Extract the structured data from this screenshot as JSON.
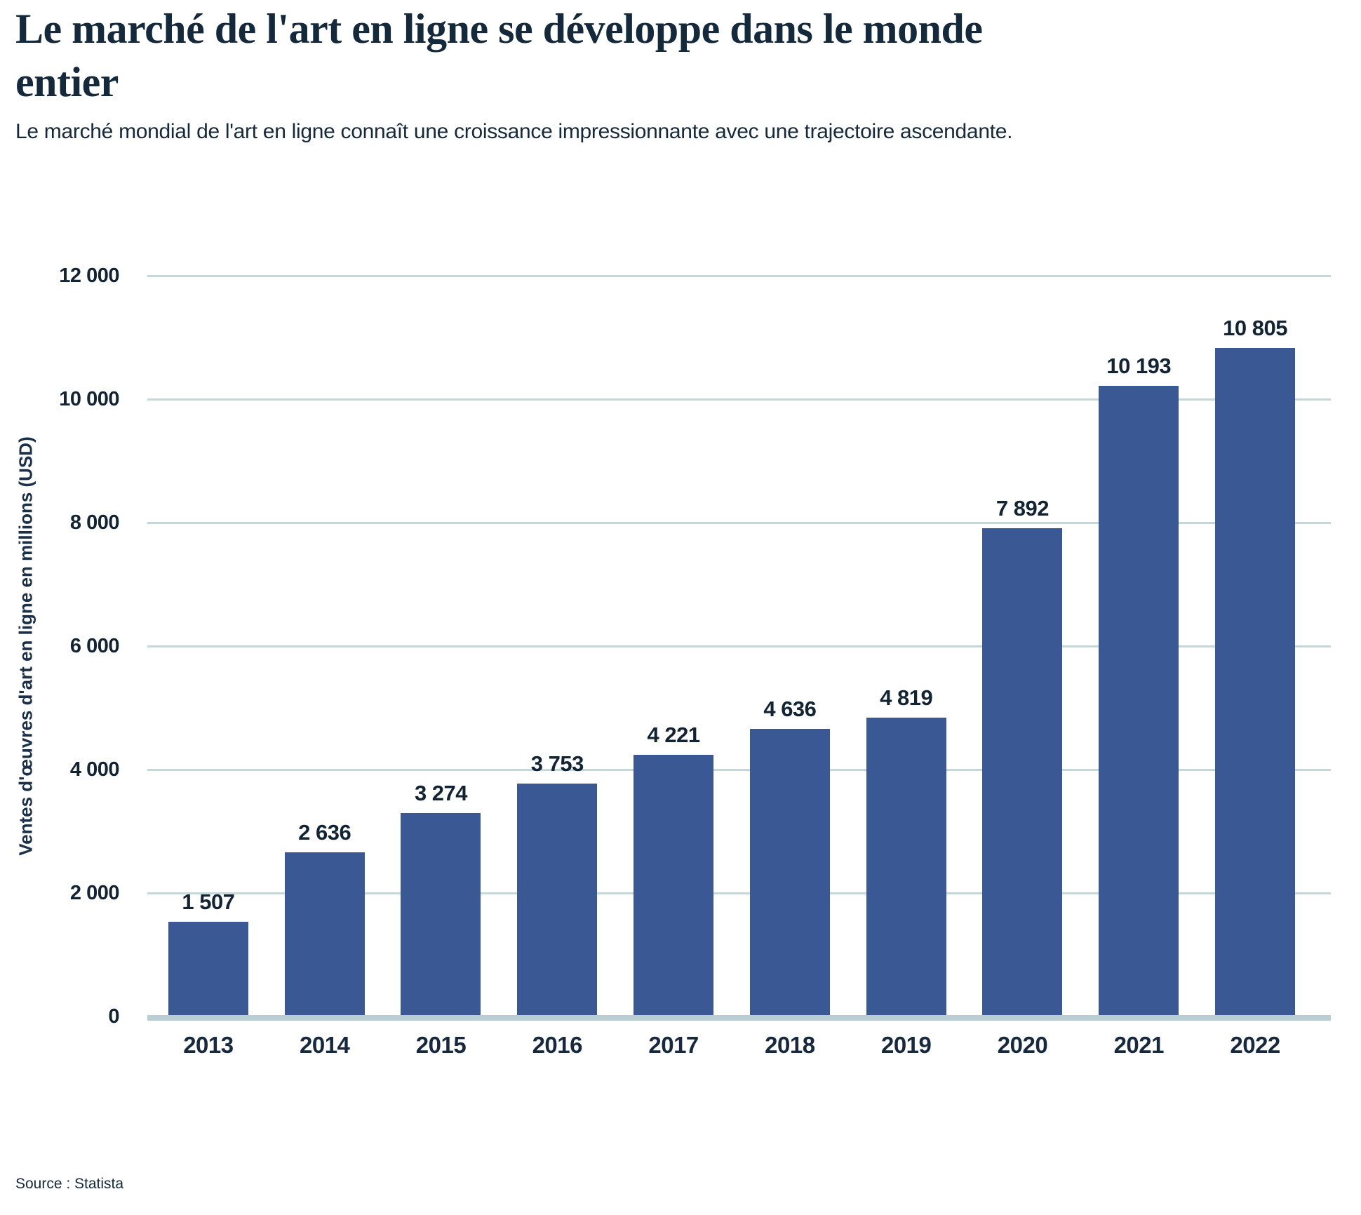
{
  "header": {
    "title": "Le marché de l'art en ligne se développe dans le monde\nentier",
    "subtitle": "Le marché mondial de l'art en ligne connaît une croissance impressionnante avec une trajectoire ascendante."
  },
  "footer": {
    "source": "Source : Statista"
  },
  "chart_data": {
    "type": "bar",
    "title": "Le marché de l'art en ligne se développe dans le monde entier",
    "subtitle": "Le marché mondial de l'art en ligne connaît une croissance impressionnante avec une trajectoire ascendante.",
    "categories": [
      "2013",
      "2014",
      "2015",
      "2016",
      "2017",
      "2018",
      "2019",
      "2020",
      "2021",
      "2022"
    ],
    "values": [
      1507,
      2636,
      3274,
      3753,
      4221,
      4636,
      4819,
      7892,
      10193,
      10805
    ],
    "values_formatted": [
      "1 507",
      "2 636",
      "3 274",
      "3 753",
      "4 221",
      "4 636",
      "4 819",
      "7 892",
      "10 193",
      "10 805"
    ],
    "xlabel": "",
    "ylabel": "Ventes d'œuvres d'art en ligne en millions (USD)",
    "ylim": [
      0,
      12000
    ],
    "yticks": [
      {
        "value": 12000,
        "label": "12 000"
      },
      {
        "value": 10000,
        "label": "10 000"
      },
      {
        "value": 8000,
        "label": "8 000"
      },
      {
        "value": 6000,
        "label": "6 000"
      },
      {
        "value": 4000,
        "label": "4 000"
      },
      {
        "value": 2000,
        "label": "2 000"
      },
      {
        "value": 0,
        "label": "0"
      }
    ],
    "grid": "horizontal",
    "legend": "none",
    "bar_color": "#3a5994",
    "gridline_color": "#c7d7d9",
    "baseline_color": "#b9ced2",
    "source": "Source : Statista"
  }
}
